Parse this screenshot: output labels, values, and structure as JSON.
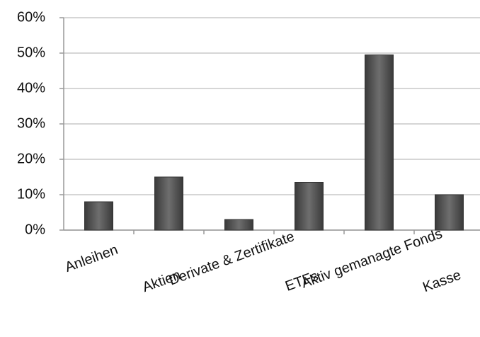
{
  "chart_data": {
    "type": "bar",
    "categories": [
      "Anleihen",
      "Aktien",
      "Derivate & Zertifikate",
      "ETFs",
      "Aktiv gemanagte Fonds",
      "Kasse"
    ],
    "values": [
      8,
      15,
      3,
      13.5,
      49.5,
      10
    ],
    "color": "#5a5a5a",
    "ylim": [
      0,
      60
    ],
    "yticks": [
      {
        "value": 0,
        "label": "0%"
      },
      {
        "value": 10,
        "label": "10%"
      },
      {
        "value": 20,
        "label": "20%"
      },
      {
        "value": 30,
        "label": "30%"
      },
      {
        "value": 40,
        "label": "40%"
      },
      {
        "value": 50,
        "label": "50%"
      },
      {
        "value": 60,
        "label": "60%"
      }
    ],
    "grid": true
  }
}
